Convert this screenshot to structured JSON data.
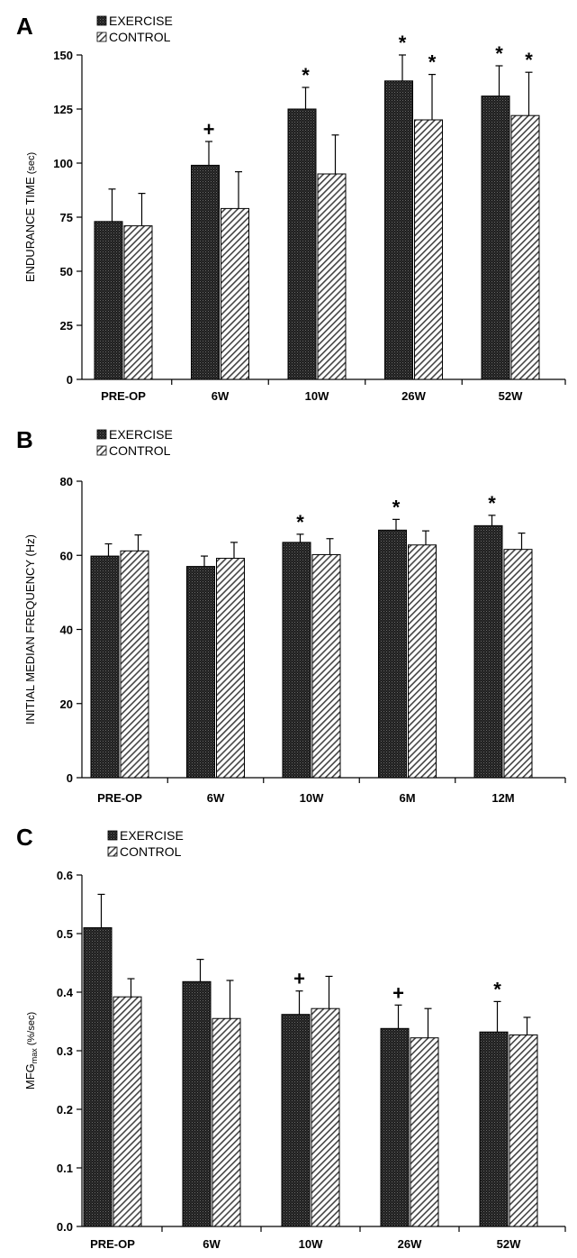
{
  "chart_data": [
    {
      "panel": "A",
      "type": "bar",
      "ylabel": "ENDURANCE TIME",
      "yunit": "(sec)",
      "ylim": [
        0,
        150
      ],
      "yticks": [
        "0",
        "25",
        "50",
        "75",
        "100",
        "125",
        "150"
      ],
      "categories": [
        "PRE-OP",
        "6W",
        "10W",
        "26W",
        "52W"
      ],
      "series": [
        {
          "name": "EXERCISE",
          "values": [
            73,
            99,
            125,
            138,
            131
          ],
          "errors": [
            15,
            11,
            10,
            12,
            14
          ],
          "marks": [
            "",
            "+",
            "*",
            "*",
            "*"
          ]
        },
        {
          "name": "CONTROL",
          "values": [
            71,
            79,
            95,
            120,
            122
          ],
          "errors": [
            15,
            17,
            18,
            21,
            20
          ],
          "marks": [
            "",
            "",
            "",
            "*",
            "*"
          ]
        }
      ]
    },
    {
      "panel": "B",
      "type": "bar",
      "ylabel": "INITIAL MEDIAN FREQUENCY (Hz)",
      "yunit": "",
      "ylim": [
        0,
        80
      ],
      "yticks": [
        "0",
        "20",
        "40",
        "60",
        "80"
      ],
      "categories": [
        "PRE-OP",
        "6W",
        "10W",
        "6M",
        "12M"
      ],
      "series": [
        {
          "name": "EXERCISE",
          "values": [
            59.8,
            57,
            63.5,
            66.8,
            68
          ],
          "errors": [
            3.3,
            2.8,
            2.2,
            2.9,
            2.8
          ],
          "marks": [
            "",
            "",
            "*",
            "*",
            "*"
          ]
        },
        {
          "name": "CONTROL",
          "values": [
            61.2,
            59.2,
            60.2,
            62.8,
            61.6
          ],
          "errors": [
            4.3,
            4.3,
            4.3,
            3.8,
            4.4
          ],
          "marks": [
            "",
            "",
            "",
            "",
            ""
          ]
        }
      ]
    },
    {
      "panel": "C",
      "type": "bar",
      "ylabel": "MFG",
      "ylabel_sub": "max",
      "yunit": "(%/sec)",
      "ylim": [
        0,
        0.6
      ],
      "yticks": [
        "0.0",
        "0.1",
        "0.2",
        "0.3",
        "0.4",
        "0.5",
        "0.6"
      ],
      "categories": [
        "PRE-OP",
        "6W",
        "10W",
        "26W",
        "52W"
      ],
      "series": [
        {
          "name": "EXERCISE",
          "values": [
            0.51,
            0.418,
            0.362,
            0.338,
            0.332
          ],
          "errors": [
            0.057,
            0.038,
            0.04,
            0.04,
            0.052
          ],
          "marks": [
            "",
            "",
            "+",
            "+",
            "*"
          ]
        },
        {
          "name": "CONTROL",
          "values": [
            0.392,
            0.355,
            0.372,
            0.322,
            0.327
          ],
          "errors": [
            0.031,
            0.065,
            0.055,
            0.05,
            0.03
          ],
          "marks": [
            "",
            "",
            "",
            "",
            ""
          ]
        }
      ]
    }
  ]
}
